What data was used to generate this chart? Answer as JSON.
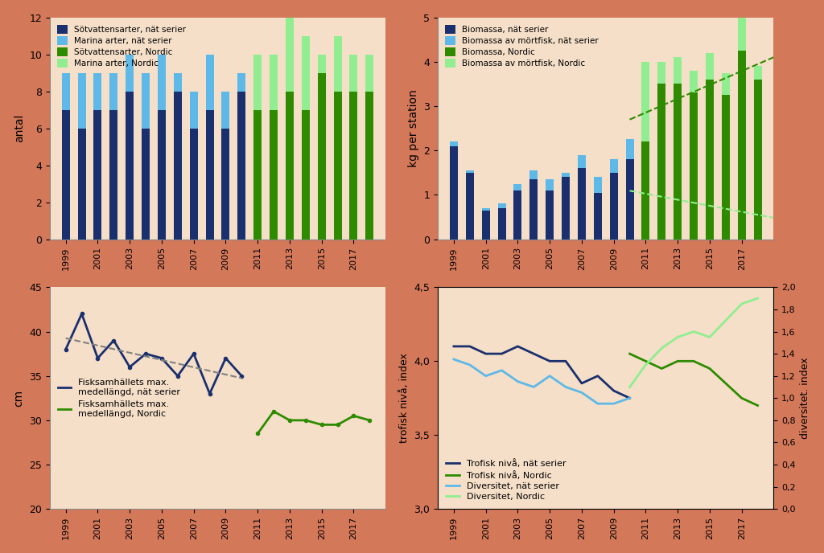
{
  "background_color": "#d4785a",
  "plot_bg_color": "#f5dfc8",
  "years_nat": [
    1999,
    2000,
    2001,
    2002,
    2003,
    2004,
    2005,
    2006,
    2007,
    2008,
    2009,
    2010
  ],
  "sotv_nat": [
    7,
    6,
    7,
    7,
    8,
    6,
    7,
    8,
    6,
    7,
    6,
    8
  ],
  "marina_nat": [
    2,
    3,
    2,
    2,
    2,
    3,
    3,
    1,
    2,
    3,
    2,
    1
  ],
  "years_nordic_sp": [
    2011,
    2012,
    2013,
    2014,
    2015,
    2016,
    2017,
    2018
  ],
  "sotv_nordic": [
    7,
    7,
    8,
    7,
    9,
    8,
    8,
    8
  ],
  "marina_nordic": [
    3,
    3,
    4,
    4,
    1,
    3,
    2,
    2
  ],
  "bio_nat_years": [
    1999,
    2000,
    2001,
    2002,
    2003,
    2004,
    2005,
    2006,
    2007,
    2008,
    2009,
    2010
  ],
  "bio_nat": [
    2.1,
    1.5,
    0.65,
    0.7,
    1.1,
    1.35,
    1.1,
    1.4,
    1.6,
    1.05,
    1.5,
    1.8
  ],
  "bio_mort_nat": [
    0.1,
    0.05,
    0.05,
    0.1,
    0.15,
    0.2,
    0.25,
    0.1,
    0.3,
    0.35,
    0.3,
    0.45
  ],
  "bio_nordic_years": [
    2011,
    2012,
    2013,
    2014,
    2015,
    2016,
    2017,
    2018
  ],
  "bio_nordic": [
    2.2,
    3.5,
    3.5,
    3.3,
    3.6,
    3.25,
    4.25,
    3.6
  ],
  "bio_mort_nordic": [
    1.8,
    0.5,
    0.6,
    0.5,
    0.6,
    0.5,
    1.5,
    0.3
  ],
  "length_nat_years": [
    1999,
    2000,
    2001,
    2002,
    2003,
    2004,
    2005,
    2006,
    2007,
    2008,
    2009,
    2010
  ],
  "length_nat": [
    38.0,
    42.0,
    37.0,
    39.0,
    36.0,
    37.5,
    37.0,
    35.0,
    37.5,
    33.0,
    37.0,
    35.0
  ],
  "length_nordic_years": [
    2011,
    2012,
    2013,
    2014,
    2015,
    2016,
    2017,
    2018
  ],
  "length_nordic": [
    28.5,
    31.0,
    30.0,
    30.0,
    29.5,
    29.5,
    30.5,
    30.0
  ],
  "trophic_nat_years": [
    1999,
    2000,
    2001,
    2002,
    2003,
    2004,
    2005,
    2006,
    2007,
    2008,
    2009,
    2010
  ],
  "trophic_nat": [
    4.1,
    4.1,
    4.05,
    4.05,
    4.1,
    4.05,
    4.0,
    4.0,
    3.85,
    3.9,
    3.8,
    3.75
  ],
  "trophic_nordic_years": [
    2010,
    2011,
    2012,
    2013,
    2014,
    2015,
    2016,
    2017,
    2018
  ],
  "trophic_nordic": [
    4.05,
    4.0,
    3.95,
    4.0,
    4.0,
    3.95,
    3.85,
    3.75,
    3.7
  ],
  "divers_nat_years": [
    1999,
    2000,
    2001,
    2002,
    2003,
    2004,
    2005,
    2006,
    2007,
    2008,
    2009,
    2010
  ],
  "divers_nat": [
    1.35,
    1.3,
    1.2,
    1.25,
    1.15,
    1.1,
    1.2,
    1.1,
    1.05,
    0.95,
    0.95,
    1.0
  ],
  "divers_nordic_years": [
    2010,
    2011,
    2012,
    2013,
    2014,
    2015,
    2016,
    2017,
    2018
  ],
  "divers_nordic": [
    1.1,
    1.3,
    1.45,
    1.55,
    1.6,
    1.55,
    1.7,
    1.85,
    1.9
  ],
  "color_dark_blue": "#1a2f6e",
  "color_light_blue": "#5eb8e8",
  "color_dark_green": "#2e8b00",
  "color_light_green": "#90ee90"
}
